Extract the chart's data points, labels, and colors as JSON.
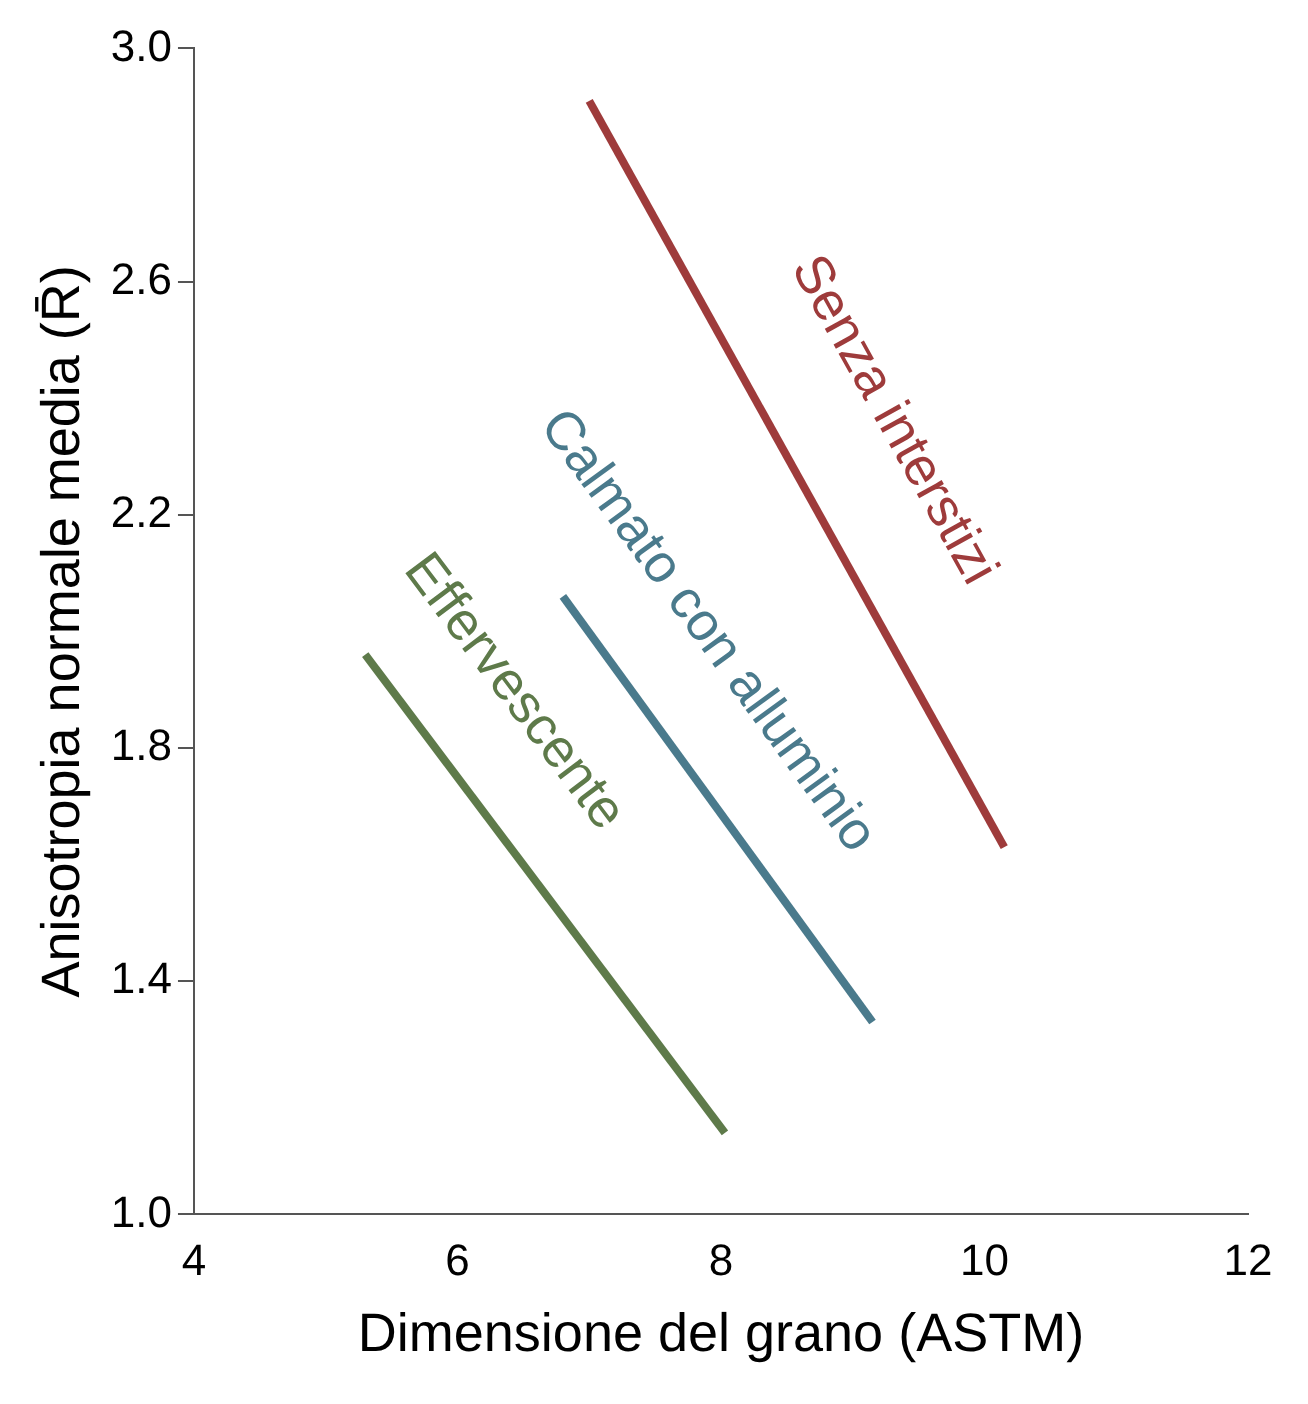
{
  "chart_data": {
    "type": "line",
    "xlabel": "Dimensione del grano (ASTM)",
    "ylabel": "Anisotropia normale media (R̄)",
    "xlim": [
      4,
      12
    ],
    "xticks": [
      4,
      6,
      8,
      10,
      12
    ],
    "ylim": [
      1.0,
      3.0
    ],
    "yticks": [
      {
        "value": 1.0,
        "label": "1.0"
      },
      {
        "value": 1.4,
        "label": "1.4"
      },
      {
        "value": 1.8,
        "label": "1.8"
      },
      {
        "value": 2.2,
        "label": "2.2"
      },
      {
        "value": 2.6,
        "label": "2.6"
      },
      {
        "value": 3.0,
        "label": "3.0"
      }
    ],
    "grid": false,
    "legend": false,
    "marker": "none",
    "line_style": "solid",
    "series": [
      {
        "name": "Senza interstizi",
        "color": "#9e3b3b",
        "x": [
          7.0,
          10.15
        ],
        "values": [
          2.91,
          1.63
        ]
      },
      {
        "name": "Calmato con alluminio",
        "color": "#4a7a8c",
        "x": [
          6.8,
          9.15
        ],
        "values": [
          2.06,
          1.33
        ]
      },
      {
        "name": "Effervescente",
        "color": "#5e7a4a",
        "x": [
          5.3,
          8.03
        ],
        "values": [
          1.96,
          1.14
        ]
      }
    ]
  }
}
